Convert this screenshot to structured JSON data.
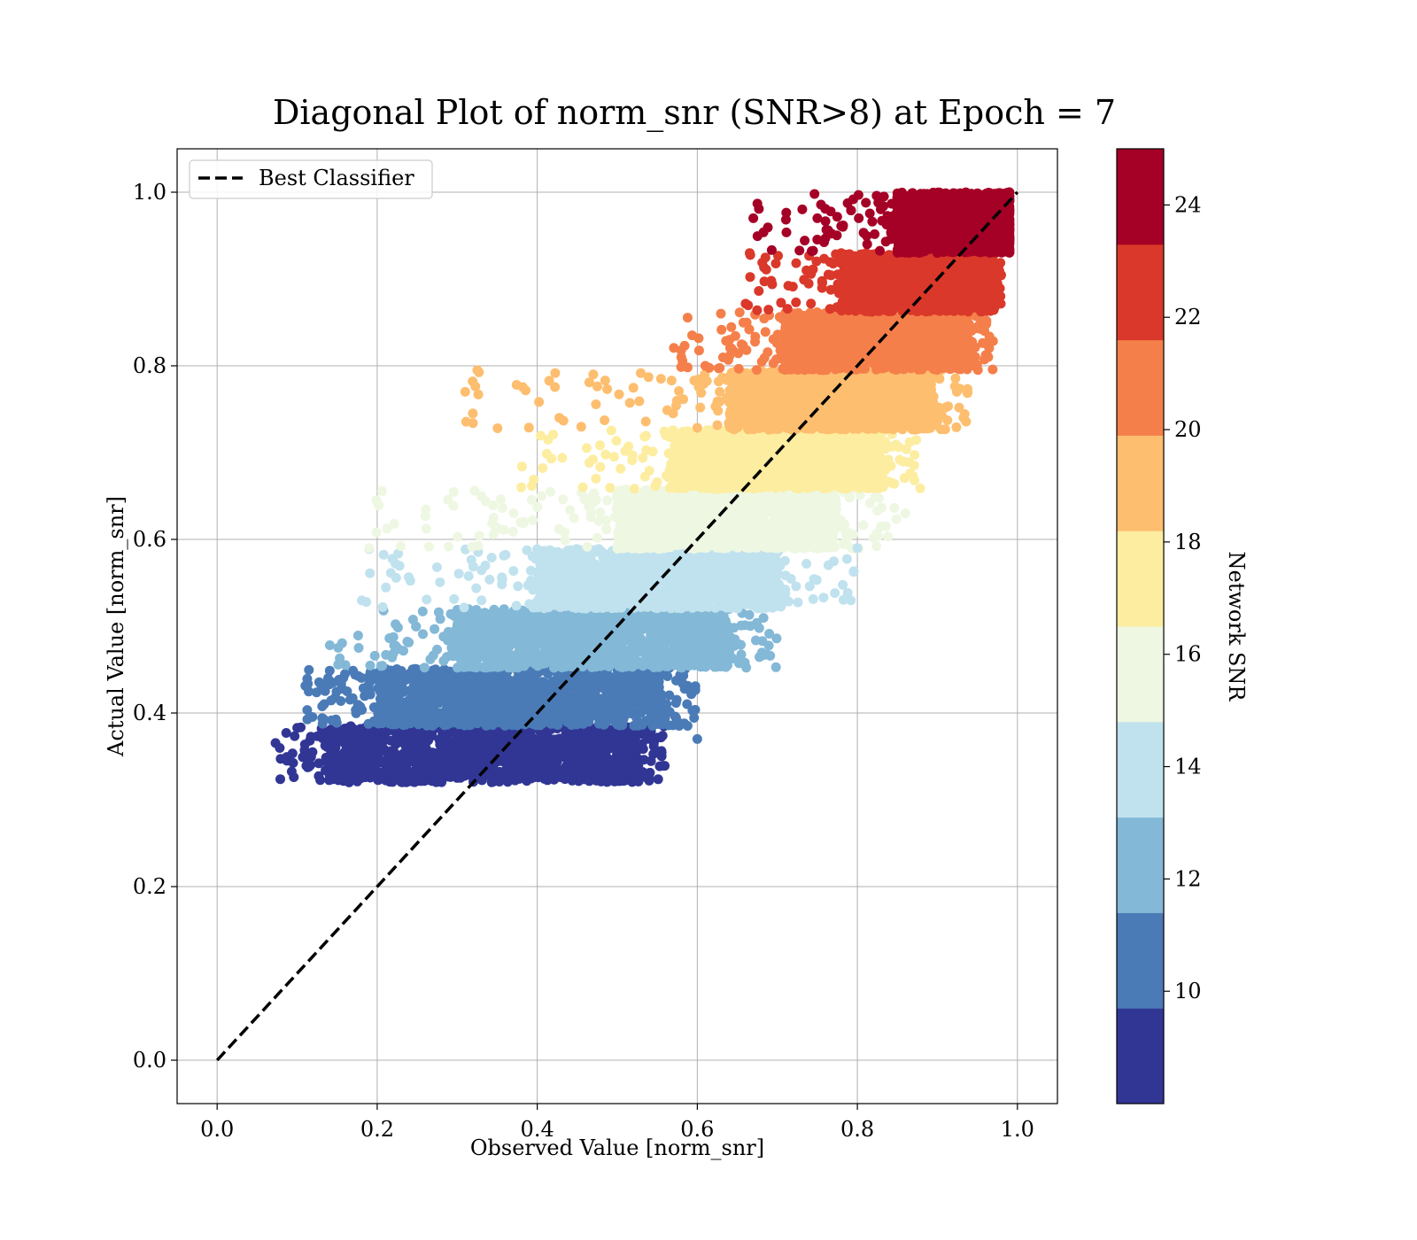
{
  "chart_data": {
    "type": "scatter",
    "title": "Diagonal Plot of norm_snr (SNR>8) at Epoch = 7",
    "xlabel": "Observed Value [norm_snr]",
    "ylabel": "Actual Value [norm_snr]",
    "xlim": [
      -0.05,
      1.05
    ],
    "ylim": [
      -0.05,
      1.05
    ],
    "xticks": [
      "0.0",
      "0.2",
      "0.4",
      "0.6",
      "0.8",
      "1.0"
    ],
    "yticks": [
      "0.0",
      "0.2",
      "0.4",
      "0.6",
      "0.8",
      "1.0"
    ],
    "grid": true,
    "legend": {
      "position": "top-left",
      "entries": [
        "Best Classifier"
      ]
    },
    "reference_line": {
      "name": "Best Classifier",
      "x": [
        0.0,
        1.0
      ],
      "y": [
        0.0,
        1.0
      ],
      "style": "dashed",
      "color": "#000000"
    },
    "colorbar": {
      "label": "Network SNR",
      "range": [
        8,
        25
      ],
      "ticks": [
        "10",
        "12",
        "14",
        "16",
        "18",
        "20",
        "22",
        "24"
      ],
      "colormap": "RdYlBu_r (discrete, 10 bands)",
      "band_colors": [
        "#313695",
        "#4a7bb7",
        "#83b8d7",
        "#c0e2ee",
        "#eef7e2",
        "#fdeda0",
        "#fdbe6f",
        "#f57f4a",
        "#da382a",
        "#a50026"
      ]
    },
    "bands": [
      {
        "snr": 8.85,
        "y": [
          0.32,
          0.385
        ],
        "x_core": [
          0.14,
          0.52
        ],
        "x_spread": [
          0.07,
          0.56
        ],
        "color": "#313695"
      },
      {
        "snr": 10.55,
        "y": [
          0.385,
          0.452
        ],
        "x_core": [
          0.2,
          0.55
        ],
        "x_spread": [
          0.11,
          0.6
        ],
        "color": "#4a7bb7"
      },
      {
        "snr": 12.25,
        "y": [
          0.452,
          0.52
        ],
        "x_core": [
          0.3,
          0.64
        ],
        "x_spread": [
          0.14,
          0.7
        ],
        "color": "#83b8d7"
      },
      {
        "snr": 13.95,
        "y": [
          0.52,
          0.589
        ],
        "x_core": [
          0.4,
          0.7
        ],
        "x_spread": [
          0.18,
          0.8
        ],
        "color": "#c0e2ee"
      },
      {
        "snr": 15.65,
        "y": [
          0.589,
          0.658
        ],
        "x_core": [
          0.5,
          0.77
        ],
        "x_spread": [
          0.19,
          0.85
        ],
        "color": "#eef7e2"
      },
      {
        "snr": 17.35,
        "y": [
          0.658,
          0.726
        ],
        "x_core": [
          0.57,
          0.83
        ],
        "x_spread": [
          0.38,
          0.88
        ],
        "color": "#fdeda0"
      },
      {
        "snr": 19.05,
        "y": [
          0.726,
          0.795
        ],
        "x_core": [
          0.64,
          0.89
        ],
        "x_spread": [
          0.31,
          0.94
        ],
        "color": "#fdbe6f"
      },
      {
        "snr": 20.75,
        "y": [
          0.795,
          0.862
        ],
        "x_core": [
          0.71,
          0.94
        ],
        "x_spread": [
          0.57,
          0.97
        ],
        "color": "#f57f4a"
      },
      {
        "snr": 22.45,
        "y": [
          0.862,
          0.93
        ],
        "x_core": [
          0.78,
          0.97
        ],
        "x_spread": [
          0.66,
          0.98
        ],
        "color": "#da382a"
      },
      {
        "snr": 24.15,
        "y": [
          0.93,
          1.0
        ],
        "x_core": [
          0.85,
          0.99
        ],
        "x_spread": [
          0.67,
          0.99
        ],
        "color": "#a50026"
      }
    ],
    "outliers": [
      {
        "x": 0.31,
        "y": 0.77,
        "color": "#fdbe6f"
      },
      {
        "x": 0.47,
        "y": 0.79,
        "color": "#fdbe6f"
      },
      {
        "x": 0.58,
        "y": 0.81,
        "color": "#f57f4a"
      },
      {
        "x": 0.61,
        "y": 0.8,
        "color": "#f57f4a"
      },
      {
        "x": 0.67,
        "y": 0.97,
        "color": "#a50026"
      },
      {
        "x": 0.75,
        "y": 0.97,
        "color": "#a50026"
      },
      {
        "x": 0.33,
        "y": 0.65,
        "color": "#eef7e2"
      },
      {
        "x": 0.38,
        "y": 0.66,
        "color": "#fdeda0"
      },
      {
        "x": 0.19,
        "y": 0.59,
        "color": "#eef7e2"
      },
      {
        "x": 0.8,
        "y": 0.59,
        "color": "#c0e2ee"
      },
      {
        "x": 0.6,
        "y": 0.37,
        "color": "#4a7bb7"
      },
      {
        "x": 0.86,
        "y": 0.63,
        "color": "#eef7e2"
      }
    ]
  }
}
